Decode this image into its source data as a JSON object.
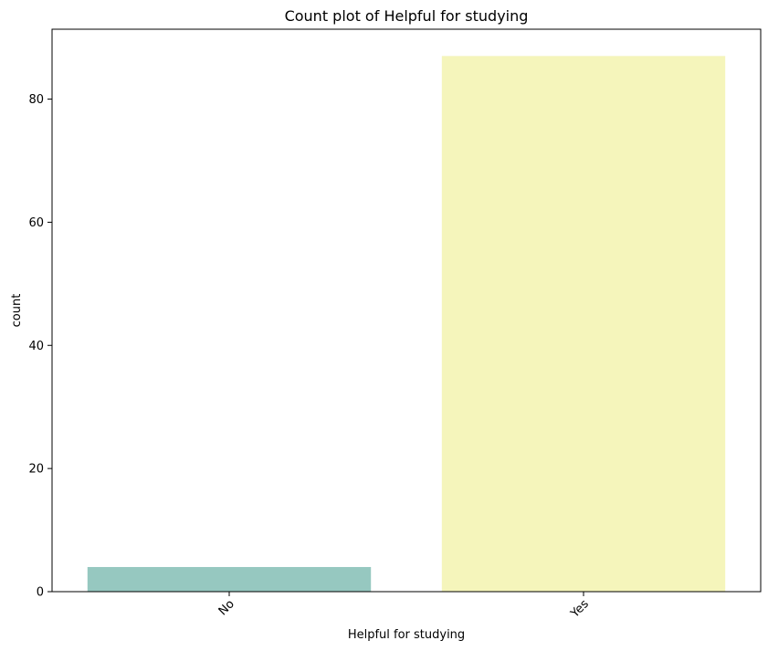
{
  "chart_data": {
    "type": "bar",
    "title": "Count plot of Helpful for studying",
    "xlabel": "Helpful for studying",
    "ylabel": "count",
    "categories": [
      "No",
      "Yes"
    ],
    "values": [
      4,
      87
    ],
    "colors": [
      "#96c8c0",
      "#f5f5bb"
    ],
    "ylim": [
      0,
      91.35
    ],
    "yticks": [
      0,
      20,
      40,
      60,
      80
    ],
    "grid": false,
    "legend": "none",
    "x_tick_rotation_deg": 45
  }
}
